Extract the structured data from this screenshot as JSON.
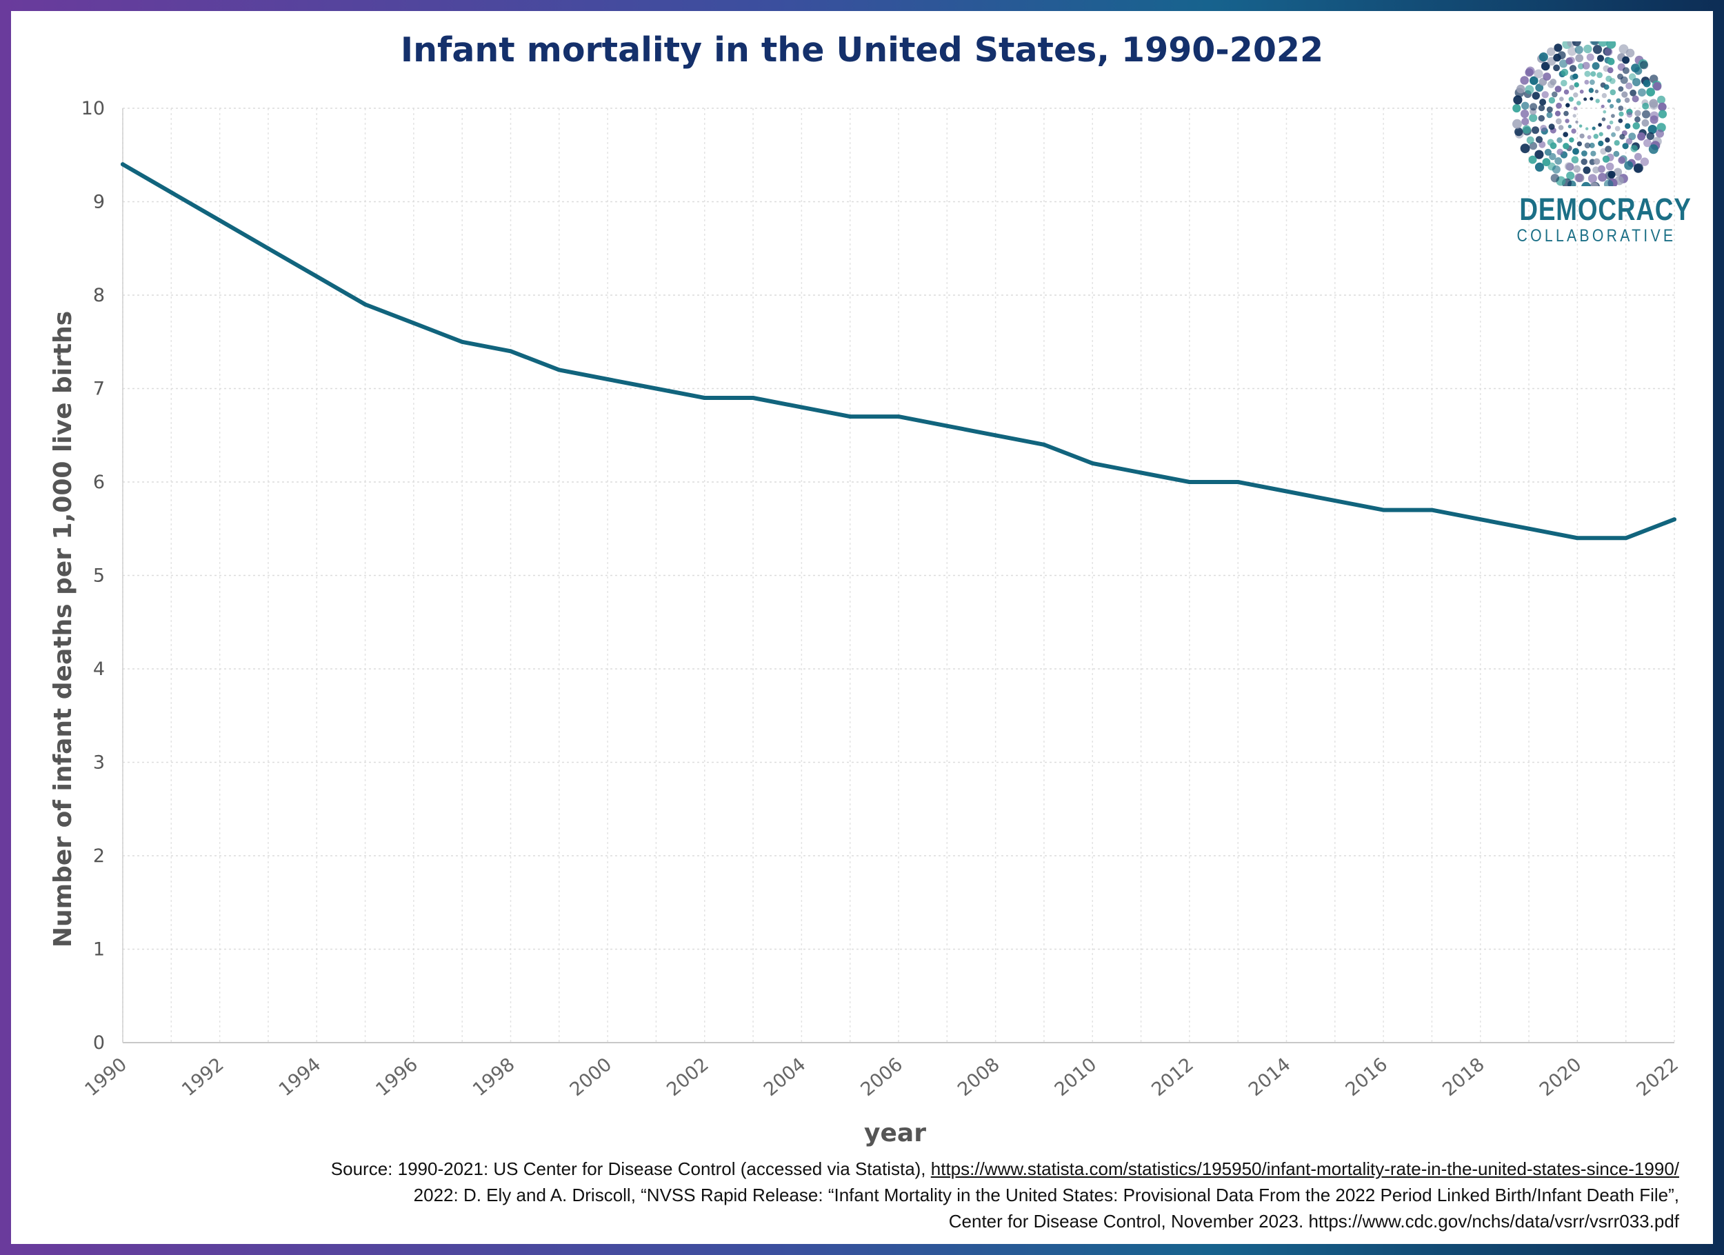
{
  "chart_data": {
    "type": "line",
    "title": "Infant mortality in the United States, 1990-2022",
    "xlabel": "year",
    "ylabel": "Number of infant deaths per 1,000 live births",
    "xlim": [
      1990,
      2022
    ],
    "ylim": [
      0,
      10
    ],
    "y_ticks": [
      "0",
      "1",
      "2",
      "3",
      "4",
      "5",
      "6",
      "7",
      "8",
      "9",
      "10"
    ],
    "x_ticks": [
      "1990",
      "1992",
      "1994",
      "1996",
      "1998",
      "2000",
      "2002",
      "2004",
      "2006",
      "2008",
      "2010",
      "2012",
      "2014",
      "2016",
      "2018",
      "2020",
      "2022"
    ],
    "grid": true,
    "line_color": "#11647d",
    "series": [
      {
        "x": [
          1990,
          1991,
          1992,
          1993,
          1994,
          1995,
          1996,
          1997,
          1998,
          1999,
          2000,
          2001,
          2002,
          2003,
          2004,
          2005,
          2006,
          2007,
          2008,
          2009,
          2010,
          2011,
          2012,
          2013,
          2014,
          2015,
          2016,
          2017,
          2018,
          2019,
          2020,
          2021,
          2022
        ],
        "values": [
          9.4,
          9.1,
          8.8,
          8.5,
          8.2,
          7.9,
          7.7,
          7.5,
          7.4,
          7.2,
          7.1,
          7.0,
          6.9,
          6.9,
          6.8,
          6.7,
          6.7,
          6.6,
          6.5,
          6.4,
          6.2,
          6.1,
          6.0,
          6.0,
          5.9,
          5.8,
          5.7,
          5.7,
          5.6,
          5.5,
          5.4,
          5.4,
          5.6
        ]
      }
    ]
  },
  "logo": {
    "word1": "DEMOCRACY",
    "word2": "COLLABORATIVE",
    "colors": [
      "#0d2d55",
      "#1b6f86",
      "#3aa59b",
      "#7c6aa8",
      "#9a9fb5"
    ]
  },
  "source": {
    "line1_text": "Source: 1990-2021: US Center for Disease Control (accessed via Statista), ",
    "line1_link": "https://www.statista.com/statistics/195950/infant-mortality-rate-in-the-united-states-since-1990/",
    "line2": "2022: D. Ely and A. Driscoll, “NVSS Rapid Release: “Infant Mortality in the United States: Provisional Data From the 2022 Period Linked Birth/Infant Death File”,",
    "line3": "Center for Disease Control, November 2023. https://www.cdc.gov/nchs/data/vsrr/vsrr033.pdf"
  }
}
